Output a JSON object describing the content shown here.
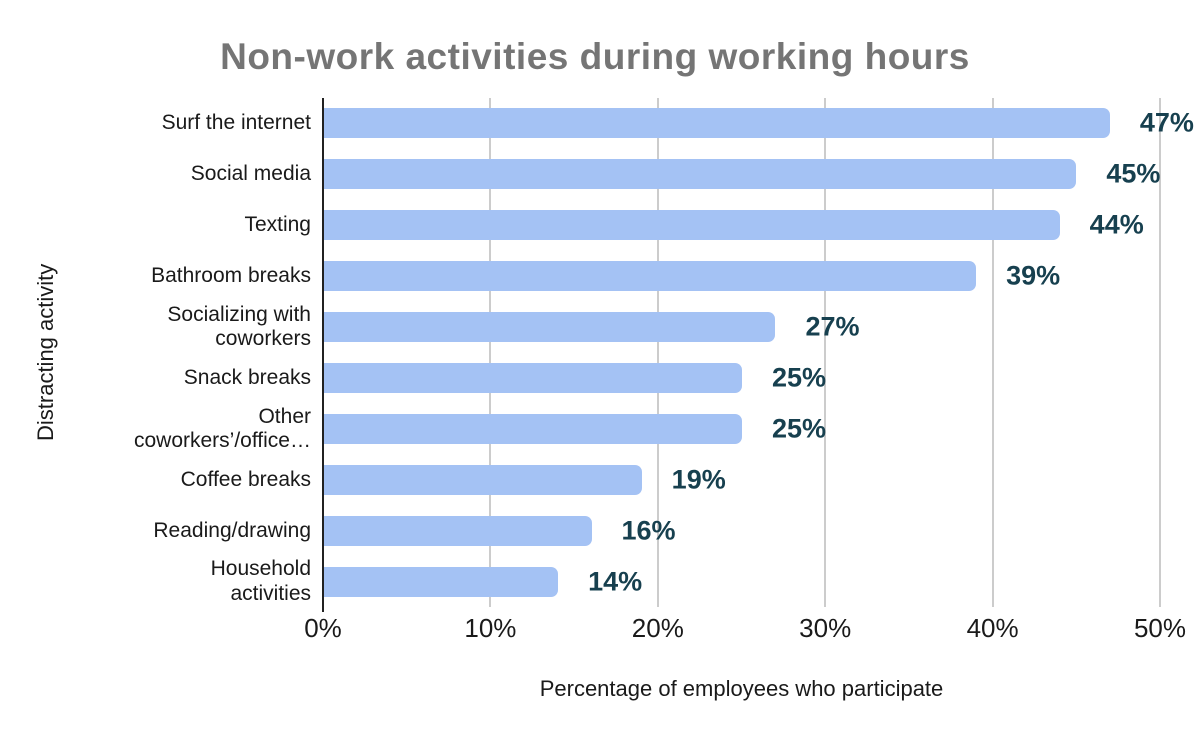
{
  "chart_data": {
    "type": "bar",
    "orientation": "horizontal",
    "title": "Non-work activities during working hours",
    "xlabel": "Percentage of employees who participate",
    "ylabel": "Distracting activity",
    "categories": [
      "Surf the internet",
      "Social media",
      "Texting",
      "Bathroom breaks",
      "Socializing with\ncoworkers",
      "Snack breaks",
      "Other\ncoworkers’/office…",
      "Coffee breaks",
      "Reading/drawing",
      "Household\nactivities"
    ],
    "values": [
      47,
      45,
      44,
      39,
      27,
      25,
      25,
      19,
      16,
      14
    ],
    "value_labels": [
      "47%",
      "45%",
      "44%",
      "39%",
      "27%",
      "25%",
      "25%",
      "19%",
      "16%",
      "14%"
    ],
    "x_ticks": [
      "0%",
      "10%",
      "20%",
      "30%",
      "40%",
      "50%"
    ],
    "xlim": [
      0,
      50
    ],
    "gridlines": true,
    "legend": "none",
    "colors": {
      "bar": "#a4c2f4",
      "value_label": "#17404f",
      "title": "#757575",
      "axis_text": "#1a1a1a",
      "gridline": "#cccccc",
      "axis_line": "#212121"
    }
  }
}
